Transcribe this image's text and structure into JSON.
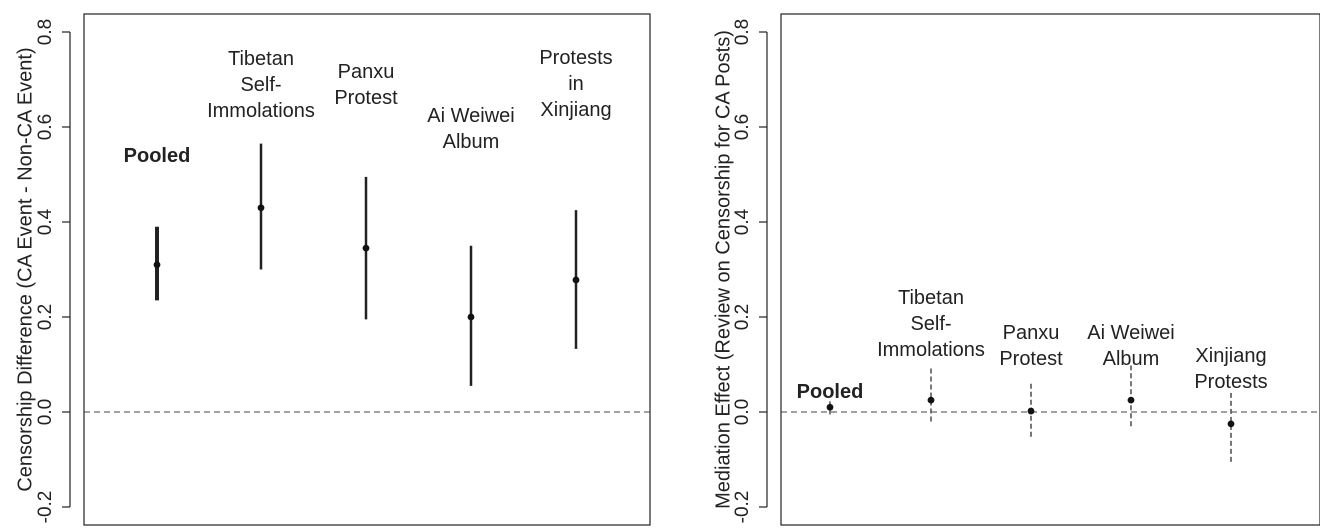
{
  "chart_data": [
    {
      "type": "scatter",
      "title": "",
      "ylabel": "Censorship Difference (CA Event - Non-CA Event)",
      "ylim": [
        -0.2,
        0.8
      ],
      "yticks": [
        "-0.2",
        "0.0",
        "0.2",
        "0.4",
        "0.6",
        "0.8"
      ],
      "reference_line": 0.0,
      "series": [
        {
          "label_lines": [
            "Pooled"
          ],
          "bold": true,
          "estimate": 0.31,
          "lower": 0.235,
          "upper": 0.39
        },
        {
          "label_lines": [
            "Tibetan",
            "Self-",
            "Immolations"
          ],
          "bold": false,
          "estimate": 0.43,
          "lower": 0.3,
          "upper": 0.565
        },
        {
          "label_lines": [
            "Panxu",
            "Protest"
          ],
          "bold": false,
          "estimate": 0.345,
          "lower": 0.195,
          "upper": 0.495
        },
        {
          "label_lines": [
            "Ai Weiwei",
            "Album"
          ],
          "bold": false,
          "estimate": 0.2,
          "lower": 0.055,
          "upper": 0.35
        },
        {
          "label_lines": [
            "Protests",
            "in",
            "Xinjiang"
          ],
          "bold": false,
          "estimate": 0.278,
          "lower": 0.133,
          "upper": 0.425
        }
      ]
    },
    {
      "type": "scatter",
      "title": "",
      "ylabel": "Mediation Effect (Review on Censorship for CA Posts)",
      "ylim": [
        -0.2,
        0.8
      ],
      "yticks": [
        "-0.2",
        "0.0",
        "0.2",
        "0.4",
        "0.6",
        "0.8"
      ],
      "reference_line": 0.0,
      "series": [
        {
          "label_lines": [
            "Pooled"
          ],
          "bold": true,
          "estimate": 0.01,
          "lower": -0.005,
          "upper": 0.025
        },
        {
          "label_lines": [
            "Tibetan",
            "Self-",
            "Immolations"
          ],
          "bold": false,
          "estimate": 0.025,
          "lower": -0.02,
          "upper": 0.095
        },
        {
          "label_lines": [
            "Panxu",
            "Protest"
          ],
          "bold": false,
          "estimate": 0.002,
          "lower": -0.052,
          "upper": 0.065
        },
        {
          "label_lines": [
            "Ai Weiwei",
            "Album"
          ],
          "bold": false,
          "estimate": 0.025,
          "lower": -0.03,
          "upper": 0.098
        },
        {
          "label_lines": [
            "Xinjiang",
            "Protests"
          ],
          "bold": false,
          "estimate": -0.025,
          "lower": -0.105,
          "upper": 0.04
        }
      ]
    }
  ]
}
